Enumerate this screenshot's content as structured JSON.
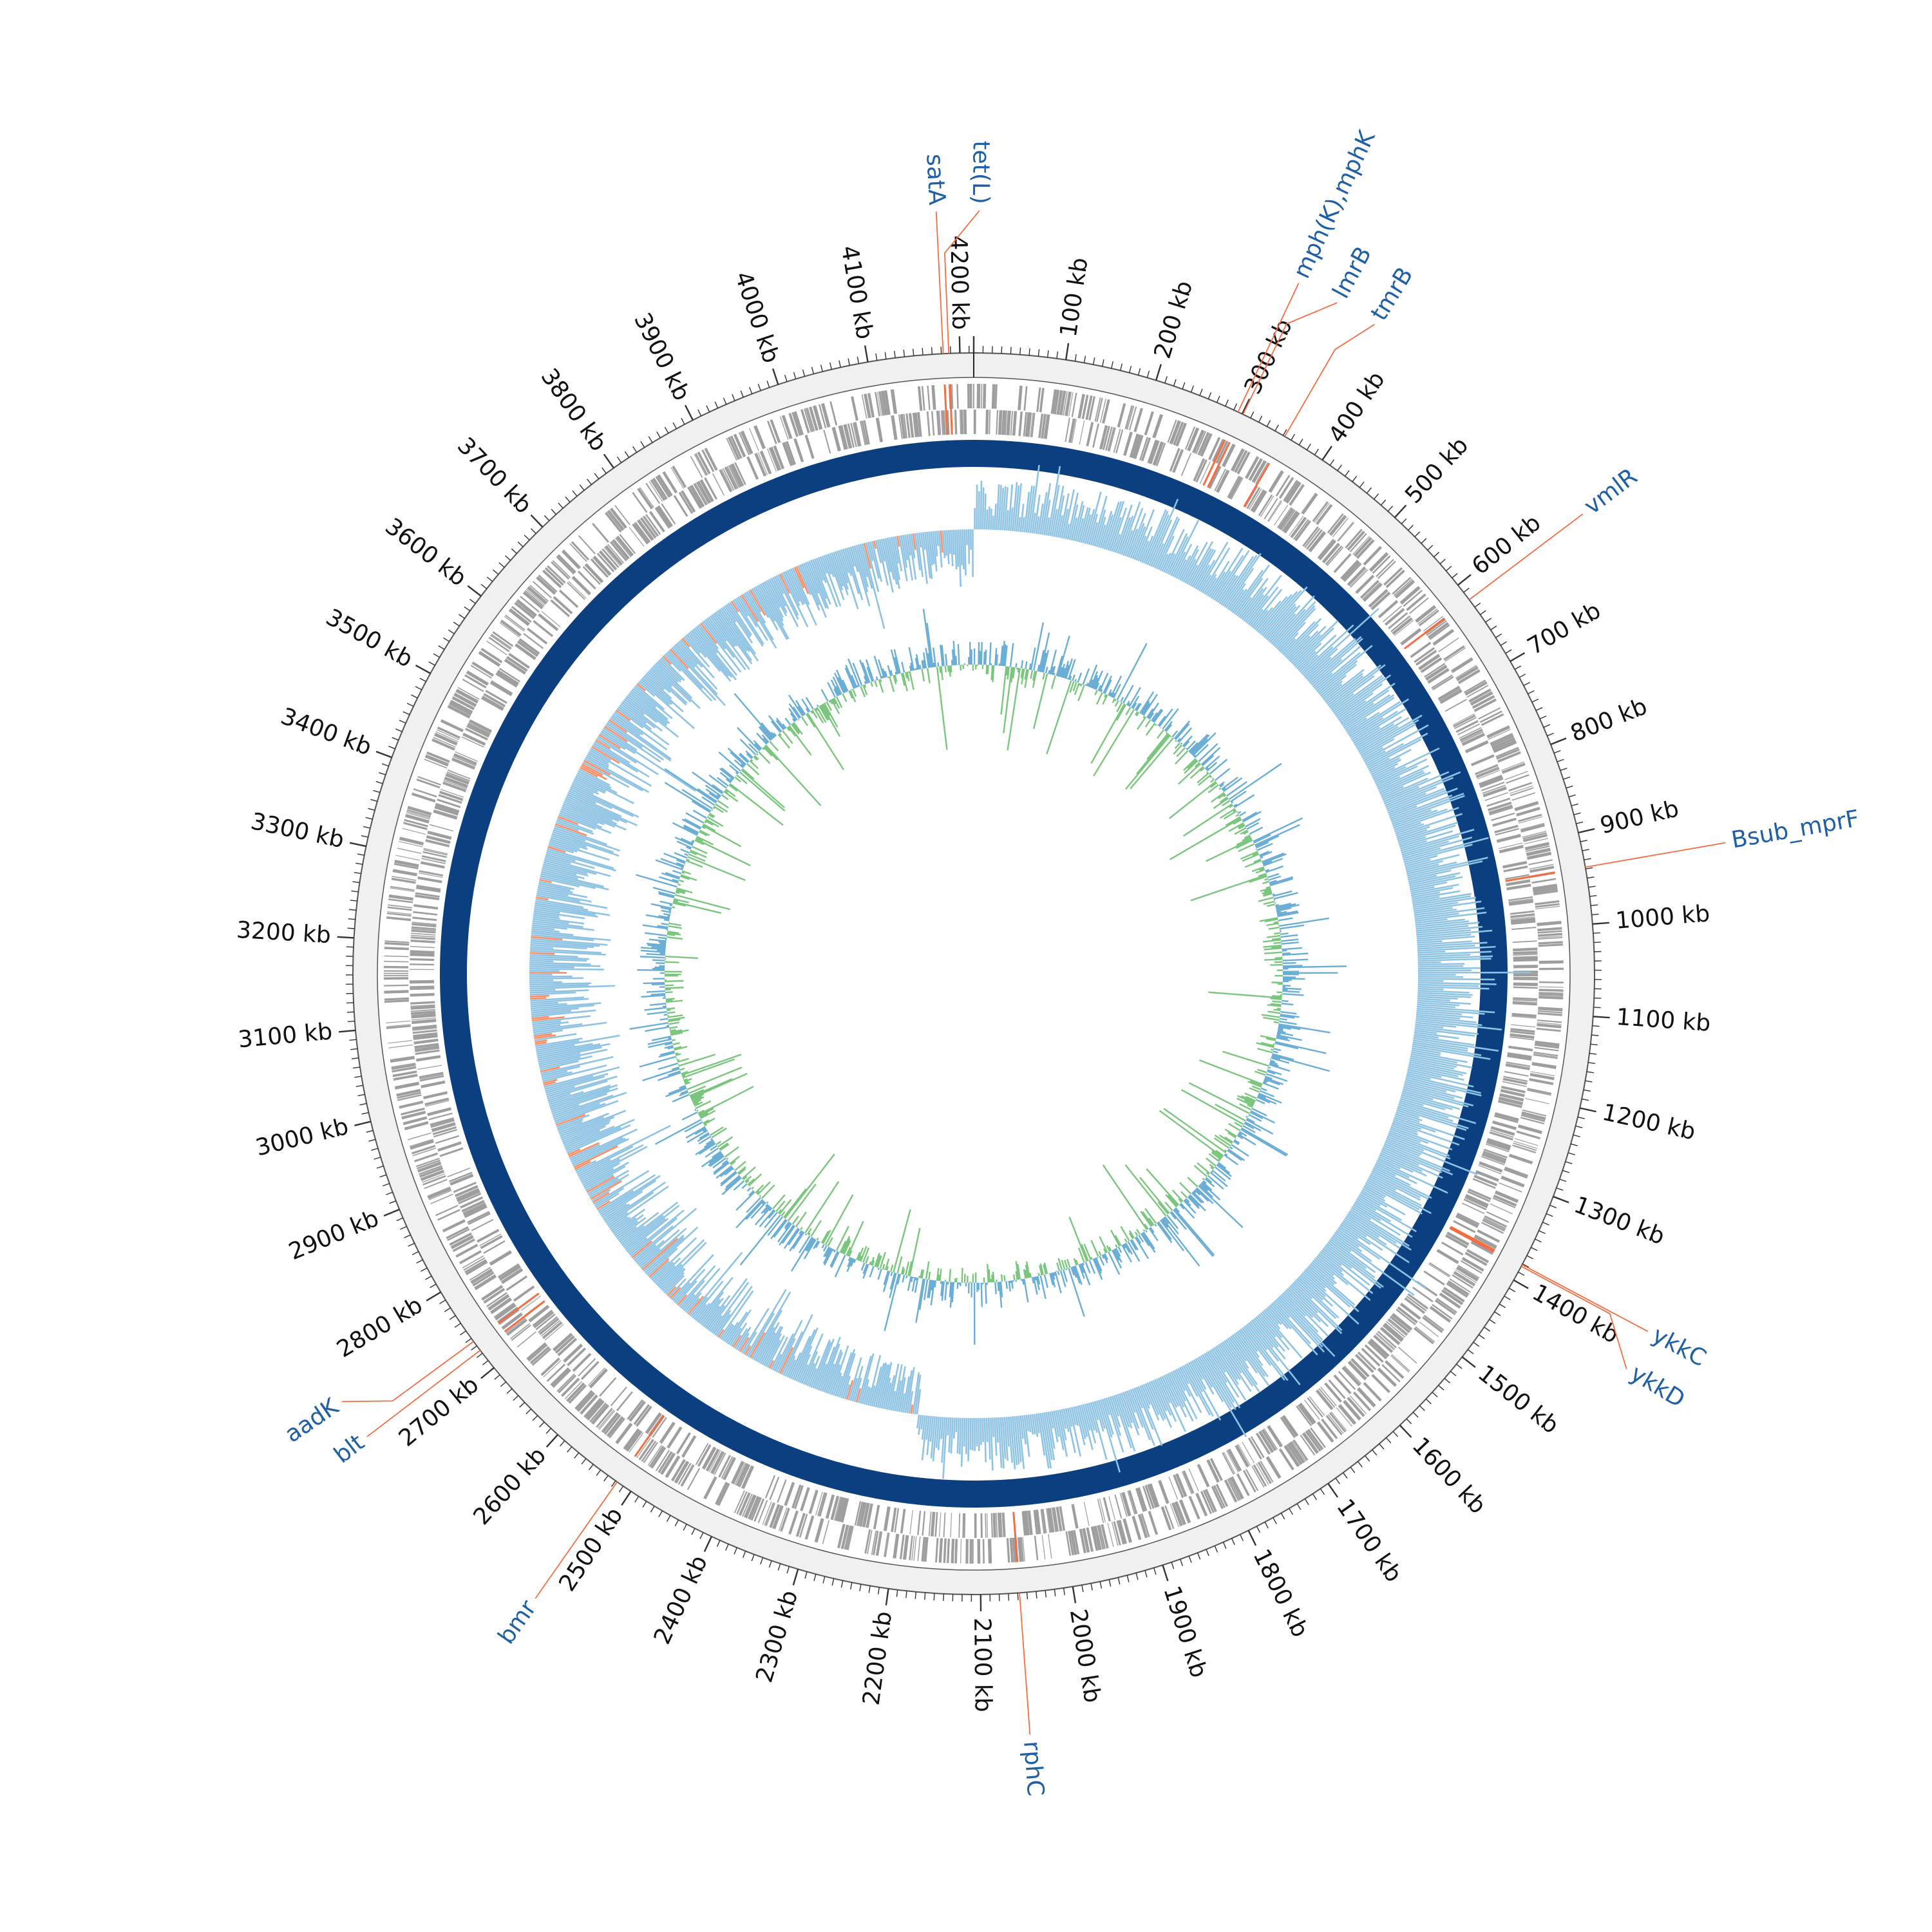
{
  "chart_data": {
    "type": "circular-genome-map",
    "genome_size_kb": 4215,
    "tick_interval_kb": 100,
    "tick_unit": "kb",
    "tracks": [
      {
        "name": "coding sequences (forward/reverse strand)",
        "color": "#9e9e9e",
        "highlight_color": "#f46d43"
      },
      {
        "name": "backbone",
        "color": "#0c3f7f"
      },
      {
        "name": "GC skew",
        "positive_color": "#8fc3e3",
        "negative_color": "#fc8d62"
      },
      {
        "name": "GC content",
        "positive_color": "#6aaed6",
        "negative_color": "#7bc67e"
      }
    ],
    "annotations": [
      {
        "label": "tet(L)",
        "position_kb": 4188
      },
      {
        "label": "satA",
        "position_kb": 4182
      },
      {
        "label": "mph(K),mphK",
        "position_kb": 295
      },
      {
        "label": "lmrB",
        "position_kb": 301
      },
      {
        "label": "tmrB",
        "position_kb": 352
      },
      {
        "label": "vmlR",
        "position_kb": 620
      },
      {
        "label": "Bsub_mprF",
        "position_kb": 938
      },
      {
        "label": "ykkC",
        "position_kb": 1381
      },
      {
        "label": "ykkD",
        "position_kb": 1383
      },
      {
        "label": "rphC",
        "position_kb": 2058
      },
      {
        "label": "bmr",
        "position_kb": 2518
      },
      {
        "label": "aadK",
        "position_kb": 2736
      },
      {
        "label": "blt",
        "position_kb": 2724
      }
    ]
  },
  "colors": {
    "label_text": "#1f5fa6",
    "callout_line": "#f46d43",
    "outer_band": "#f0f0f0",
    "cds": "#9e9e9e",
    "backbone": "#0c3f7f",
    "skew_pos": "#8fc3e3",
    "skew_neg": "#fc8d62",
    "gc_high": "#6aaed6",
    "gc_low": "#7bc67e"
  }
}
